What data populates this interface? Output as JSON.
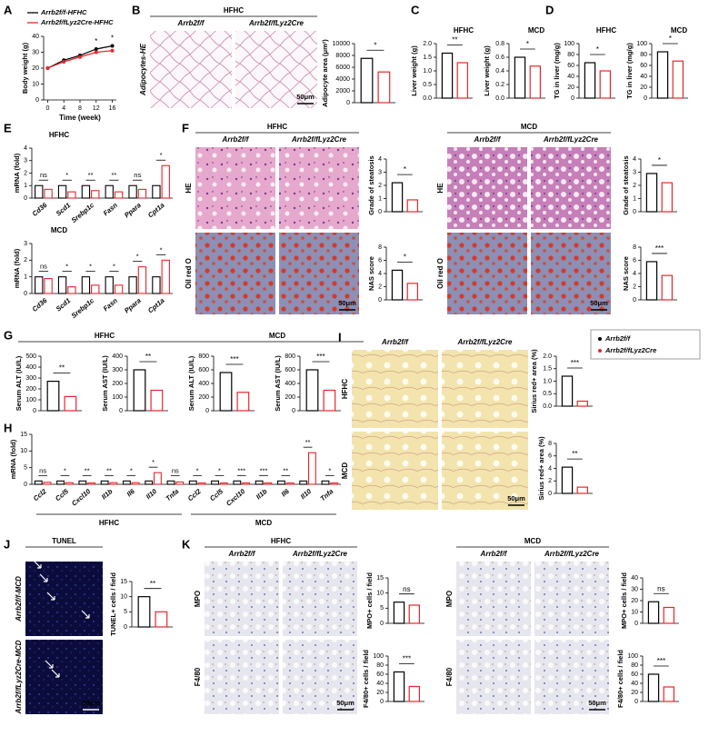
{
  "series_colors": [
    "#000000",
    "#e8262b"
  ],
  "panels": {
    "A": {
      "letter": "A",
      "legend": [
        "Arrb2f/f-HFHC",
        "Arrb2f/fLyz2Cre-HFHC"
      ],
      "chart": {
        "ylabel": "Body weight (g)",
        "xlabel": "Time (week)",
        "x": [
          0,
          4,
          8,
          12,
          16
        ],
        "xlim": [
          -1,
          17
        ],
        "xticks": [
          0,
          4,
          8,
          12,
          16
        ],
        "ylim": [
          0,
          40
        ],
        "yticks": [
          0,
          10,
          20,
          30,
          40
        ],
        "series": [
          {
            "values": [
              20,
              25,
              28,
              32,
              34
            ]
          },
          {
            "values": [
              20,
              24,
              27,
              30,
              31
            ]
          }
        ],
        "sig": [
          null,
          null,
          null,
          "*",
          "*"
        ]
      }
    },
    "B": {
      "letter": "B",
      "header": "HFHC",
      "columns": [
        "Arrb2f/f",
        "Arrb2f/fLyz2Cre"
      ],
      "row_labels": [
        "Adipocytes-HE"
      ],
      "scale_bar": "50μm",
      "charts": [
        {
          "ylabel": "Adipocyte area (μm²)",
          "ylim": [
            0,
            10000
          ],
          "yticks": [
            0,
            2000,
            4000,
            6000,
            8000,
            10000
          ],
          "values": [
            7500,
            5200
          ],
          "sig": "*"
        }
      ]
    },
    "C": {
      "letter": "C",
      "charts": [
        {
          "title": "HFHC",
          "ylabel": "Liver weight (g)",
          "ylim": [
            0,
            2
          ],
          "yticks": [
            {
              "value": 0,
              "label": "0.0"
            },
            0.5,
            {
              "value": 1,
              "label": "1.0"
            },
            1.5,
            {
              "value": 2,
              "label": "2.0"
            }
          ],
          "values": [
            1.65,
            1.3
          ],
          "sig": "**"
        },
        {
          "title": "MCD",
          "ylabel": "Liver weight (g)",
          "ylim": [
            0,
            0.8
          ],
          "yticks": [
            {
              "value": 0,
              "label": "0.0"
            },
            0.2,
            0.4,
            0.6,
            0.8
          ],
          "values": [
            0.6,
            0.47
          ],
          "sig": "*"
        }
      ]
    },
    "D": {
      "letter": "D",
      "charts": [
        {
          "title": "HFHC",
          "ylabel": "TG in liver (mg/g)",
          "ylim": [
            0,
            100
          ],
          "yticks": [
            0,
            20,
            40,
            60,
            80,
            100
          ],
          "values": [
            65,
            50
          ],
          "sig": "*"
        },
        {
          "title": "MCD",
          "ylabel": "TG in liver (mg/g)",
          "ylim": [
            0,
            100
          ],
          "yticks": [
            0,
            20,
            40,
            60,
            80,
            100
          ],
          "values": [
            85,
            68
          ],
          "sig": "*"
        }
      ]
    },
    "E": {
      "letter": "E",
      "charts": [
        {
          "title": "HFHC",
          "ylabel": "mRNA (fold)",
          "ylim": [
            0,
            4
          ],
          "yticks": [
            0,
            1,
            2,
            3,
            4
          ],
          "categories": [
            "Cd36",
            "Scd1",
            "Srebp1c",
            "Fasn",
            "Ppara",
            "Cpt1a"
          ],
          "series": [
            {
              "values": [
                1,
                1,
                1,
                1,
                1,
                1
              ]
            },
            {
              "values": [
                0.7,
                0.5,
                0.6,
                0.5,
                0.7,
                2.6
              ]
            }
          ],
          "sig": [
            "ns",
            "*",
            "**",
            "**",
            "ns",
            "*"
          ]
        },
        {
          "title": "MCD",
          "ylabel": "mRNA (fold)",
          "ylim": [
            0,
            3
          ],
          "yticks": [
            0,
            1,
            2,
            3
          ],
          "categories": [
            "Cd36",
            "Scd1",
            "Srebp1c",
            "Fasn",
            "Ppara",
            "Cpt1a"
          ],
          "series": [
            {
              "values": [
                1,
                1,
                1,
                1,
                1,
                1
              ]
            },
            {
              "values": [
                0.9,
                0.4,
                0.5,
                0.5,
                1.6,
                2.0
              ]
            }
          ],
          "sig": [
            "ns",
            "*",
            "*",
            "*",
            "*",
            "*"
          ]
        }
      ]
    },
    "F": {
      "letter": "F",
      "groups": [
        {
          "header": "HFHC",
          "columns": [
            "Arrb2f/f",
            "Arrb2f/fLyz2Cre"
          ],
          "row_labels": [
            "HE",
            "Oil red O"
          ],
          "scale_bar": "50μm",
          "charts": [
            {
              "ylabel": "Grade of steatosis",
              "ylim": [
                0,
                4
              ],
              "yticks": [
                0,
                1,
                2,
                3,
                4
              ],
              "values": [
                2.2,
                0.9
              ],
              "sig": "*"
            },
            {
              "ylabel": "NAS score",
              "ylim": [
                0,
                8
              ],
              "yticks": [
                0,
                2,
                4,
                6,
                8
              ],
              "values": [
                4.5,
                2.5
              ],
              "sig": "*"
            }
          ]
        },
        {
          "header": "MCD",
          "columns": [
            "Arrb2f/f",
            "Arrb2f/fLyz2Cre"
          ],
          "row_labels": [
            "HE",
            "Oil red O"
          ],
          "scale_bar": "50μm",
          "charts": [
            {
              "ylabel": "Grade of steatosis",
              "ylim": [
                0,
                4
              ],
              "yticks": [
                0,
                1,
                2,
                3,
                4
              ],
              "values": [
                2.9,
                2.2
              ],
              "sig": "*"
            },
            {
              "ylabel": "NAS score",
              "ylim": [
                0,
                8
              ],
              "yticks": [
                0,
                2,
                4,
                6,
                8
              ],
              "values": [
                5.8,
                3.7
              ],
              "sig": "***"
            }
          ]
        }
      ]
    },
    "G": {
      "letter": "G",
      "groups": [
        {
          "header": "HFHC",
          "charts": [
            {
              "ylabel": "Serum ALT (IU/L)",
              "ylim": [
                0,
                500
              ],
              "yticks": [
                0,
                100,
                200,
                300,
                400,
                500
              ],
              "values": [
                270,
                130
              ],
              "sig": "**"
            },
            {
              "ylabel": "Serum AST (IU/L)",
              "ylim": [
                0,
                400
              ],
              "yticks": [
                0,
                100,
                200,
                300,
                400
              ],
              "values": [
                300,
                150
              ],
              "sig": "**"
            }
          ]
        },
        {
          "header": "MCD",
          "charts": [
            {
              "ylabel": "Serum ALT (IU/L)",
              "ylim": [
                0,
                800
              ],
              "yticks": [
                0,
                200,
                400,
                600,
                800
              ],
              "values": [
                560,
                270
              ],
              "sig": "***"
            },
            {
              "ylabel": "Serum AST (IU/L)",
              "ylim": [
                0,
                800
              ],
              "yticks": [
                0,
                200,
                400,
                600,
                800
              ],
              "values": [
                600,
                300
              ],
              "sig": "***"
            }
          ]
        }
      ]
    },
    "H": {
      "letter": "H",
      "group_labels": [
        "HFHC",
        "MCD"
      ],
      "chart": {
        "ylabel": "mRNA (fold)",
        "ylim": [
          0,
          15
        ],
        "yticks": [
          0,
          5,
          10,
          15
        ],
        "categories": [
          "Ccl2",
          "Ccl5",
          "Cxcl10",
          "Il1b",
          "Il6",
          "Il10",
          "Tnfa",
          "Ccl2",
          "Ccl5",
          "Cxcl10",
          "Il1b",
          "Il6",
          "Il10",
          "Tnfa"
        ],
        "series": [
          {
            "values": [
              1,
              1,
              1,
              1,
              1,
              1,
              1,
              1,
              1,
              1,
              1,
              1,
              1,
              1
            ]
          },
          {
            "values": [
              0.6,
              0.5,
              0.4,
              0.5,
              0.5,
              3.5,
              0.7,
              0.4,
              0.4,
              0.4,
              0.4,
              0.4,
              9.5,
              0.4
            ]
          }
        ],
        "sig": [
          "ns",
          "*",
          "**",
          "**",
          "*",
          "*",
          "ns",
          "*",
          "*",
          "***",
          "***",
          "**",
          "**",
          "*"
        ]
      }
    },
    "I": {
      "letter": "I",
      "columns": [
        "Arrb2f/f",
        "Arrb2f/fLyz2Cre"
      ],
      "row_labels": [
        "HFHC",
        "MCD"
      ],
      "scale_bar": "50μm",
      "legend": [
        "Arrb2f/f",
        "Arrb2f/fLyz2Cre"
      ],
      "charts": [
        {
          "ylabel": "Sirius red+ area (%)",
          "ylim": [
            0,
            2
          ],
          "yticks": [
            {
              "value": 0,
              "label": "0.0"
            },
            0.5,
            {
              "value": 1,
              "label": "1.0"
            },
            1.5,
            {
              "value": 2,
              "label": "2.0"
            }
          ],
          "values": [
            1.2,
            0.2
          ],
          "sig": "***"
        },
        {
          "ylabel": "Sirius red+ area (%)",
          "ylim": [
            0,
            8
          ],
          "yticks": [
            0,
            2,
            4,
            6,
            8
          ],
          "values": [
            4.2,
            1.0
          ],
          "sig": "**"
        }
      ]
    },
    "J": {
      "letter": "J",
      "header": "TUNEL",
      "row_labels": [
        "Arrb2f/f-MCD",
        "Arrb2f/fLyz2Cre-MCD"
      ],
      "scale_bar": "50μm",
      "charts": [
        {
          "ylabel": "TUNEL+ cells / field",
          "ylim": [
            0,
            15
          ],
          "yticks": [
            0,
            5,
            10,
            15
          ],
          "values": [
            10,
            5
          ],
          "sig": "**"
        }
      ]
    },
    "K": {
      "letter": "K",
      "groups": [
        {
          "header": "HFHC",
          "columns": [
            "Arrb2f/f",
            "Arrb2f/fLyz2Cre"
          ],
          "row_labels": [
            "MPO",
            "F4/80"
          ],
          "scale_bar": "50μm",
          "charts": [
            {
              "ylabel": "MPO+ cells / field",
              "ylim": [
                0,
                15
              ],
              "yticks": [
                0,
                5,
                10,
                15
              ],
              "values": [
                7,
                6
              ],
              "sig": "ns"
            },
            {
              "ylabel": "F4/80+ cells / field",
              "ylim": [
                0,
                100
              ],
              "yticks": [
                0,
                20,
                40,
                60,
                80,
                100
              ],
              "values": [
                65,
                33
              ],
              "sig": "***"
            }
          ]
        },
        {
          "header": "MCD",
          "columns": [
            "Arrb2f/f",
            "Arrb2f/fLyz2Cre"
          ],
          "row_labels": [
            "MPO",
            "F4/80"
          ],
          "scale_bar": "50μm",
          "charts": [
            {
              "ylabel": "MPO+ cells / field",
              "ylim": [
                0,
                40
              ],
              "yticks": [
                0,
                10,
                20,
                30,
                40
              ],
              "values": [
                19,
                14
              ],
              "sig": "ns"
            },
            {
              "ylabel": "F4/80+ cells / field",
              "ylim": [
                0,
                100
              ],
              "yticks": [
                0,
                20,
                40,
                60,
                80,
                100
              ],
              "values": [
                60,
                32
              ],
              "sig": "***"
            }
          ]
        }
      ]
    }
  }
}
